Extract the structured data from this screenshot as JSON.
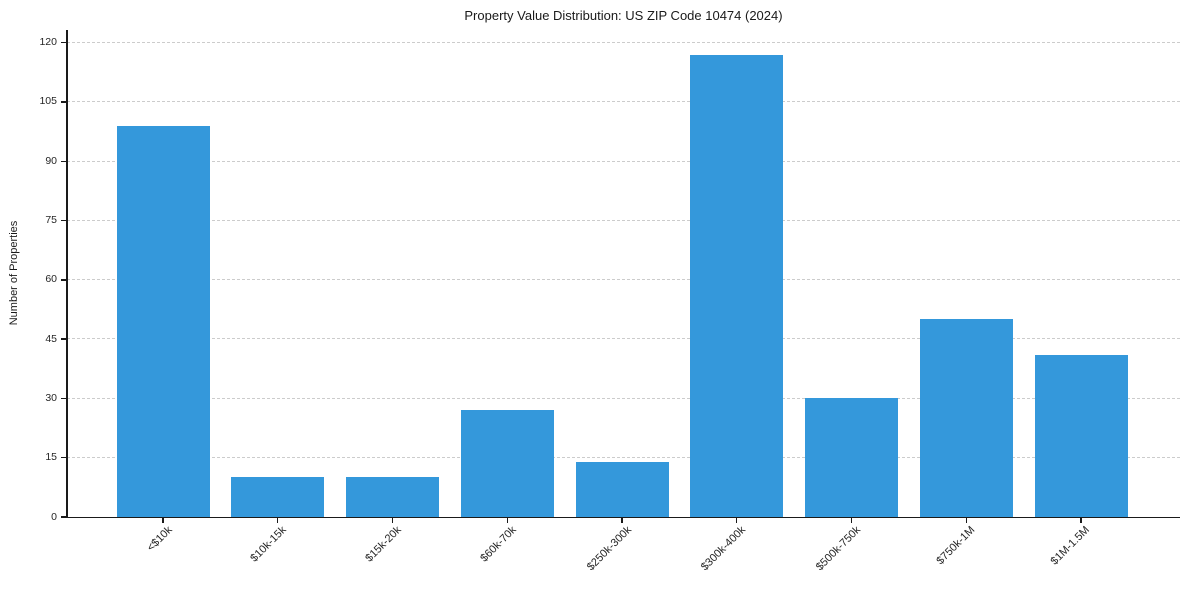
{
  "chart_data": {
    "type": "bar",
    "title": "Property Value Distribution: US ZIP Code 10474 (2024)",
    "xlabel": "",
    "ylabel": "Number of Properties",
    "categories": [
      "<$10k",
      "$10k-15k",
      "$15k-20k",
      "$60k-70k",
      "$250k-300k",
      "$300k-400k",
      "$500k-750k",
      "$750k-1M",
      "$1M-1.5M"
    ],
    "values": [
      99,
      10,
      10,
      27,
      14,
      117,
      30,
      50,
      41
    ],
    "yticks": [
      0,
      15,
      30,
      45,
      60,
      75,
      90,
      105,
      120
    ],
    "ylim": [
      0,
      123.2
    ],
    "grid": "horizontal-dashed",
    "legend": "none",
    "bar_color": "#3498db",
    "grid_color": "#cccccc",
    "axis_color": "#1a1a1a",
    "tick_label_color": "#262626"
  }
}
